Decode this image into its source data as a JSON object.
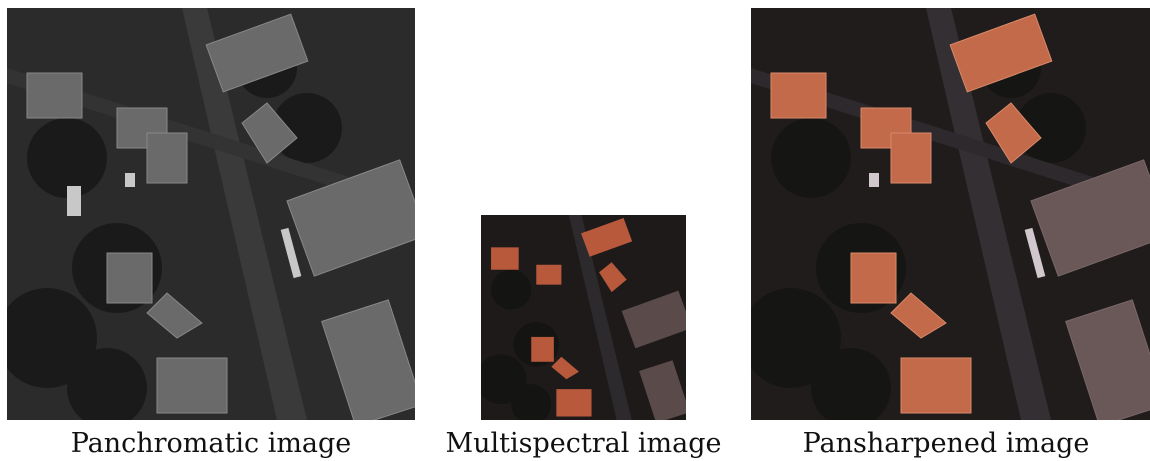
{
  "figure": {
    "panels": [
      {
        "caption": "Panchromatic image",
        "kind": "grayscale"
      },
      {
        "caption": "Multispectral image",
        "kind": "color-low-res"
      },
      {
        "caption": "Pansharpened image",
        "kind": "color-high-res"
      }
    ]
  }
}
